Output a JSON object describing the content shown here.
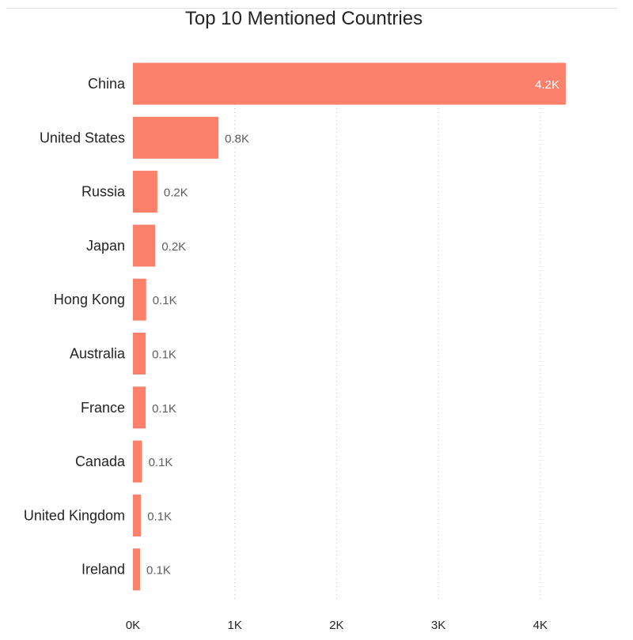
{
  "chart_data": {
    "type": "bar",
    "orientation": "horizontal",
    "title": "Top 10 Mentioned Countries",
    "categories": [
      "China",
      "United States",
      "Russia",
      "Japan",
      "Hong Kong",
      "Australia",
      "France",
      "Canada",
      "United Kingdom",
      "Ireland"
    ],
    "values": [
      4250,
      840,
      240,
      220,
      130,
      125,
      125,
      90,
      80,
      70
    ],
    "data_labels": [
      "4.2K",
      "0.8K",
      "0.2K",
      "0.2K",
      "0.1K",
      "0.1K",
      "0.1K",
      "0.1K",
      "0.1K",
      "0.1K"
    ],
    "xlim": [
      0,
      4400
    ],
    "x_ticks": [
      0,
      1000,
      2000,
      3000,
      4000
    ],
    "x_tick_labels": [
      "0K",
      "1K",
      "2K",
      "3K",
      "4K"
    ],
    "grid": true,
    "bar_color": "#fd806b"
  }
}
